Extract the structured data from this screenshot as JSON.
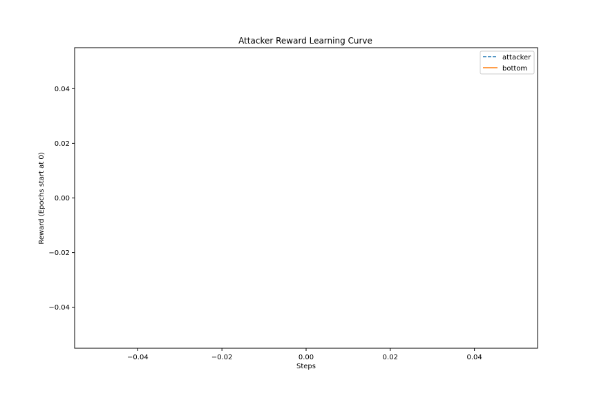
{
  "chart_data": {
    "type": "line",
    "title": "Attacker Reward Learning Curve",
    "xlabel": "Steps",
    "ylabel": "Reward (Epochs start at 0)",
    "xlim": [
      -0.055,
      0.055
    ],
    "ylim": [
      -0.055,
      0.055
    ],
    "x_ticks": [
      -0.04,
      -0.02,
      0.0,
      0.02,
      0.04
    ],
    "x_tick_labels": [
      "−0.04",
      "−0.02",
      "0.00",
      "0.02",
      "0.04"
    ],
    "y_ticks": [
      0.04,
      0.02,
      0.0,
      -0.02,
      -0.04
    ],
    "y_tick_labels": [
      "0.04",
      "0.02",
      "0.00",
      "−0.02",
      "−0.04"
    ],
    "grid": false,
    "legend_position": "top-right",
    "series": [
      {
        "name": "attacker",
        "color": "#1f77b4",
        "style": "dashed",
        "x": [],
        "y": []
      },
      {
        "name": "bottom",
        "color": "#ff7f0e",
        "style": "solid",
        "x": [],
        "y": []
      }
    ]
  }
}
